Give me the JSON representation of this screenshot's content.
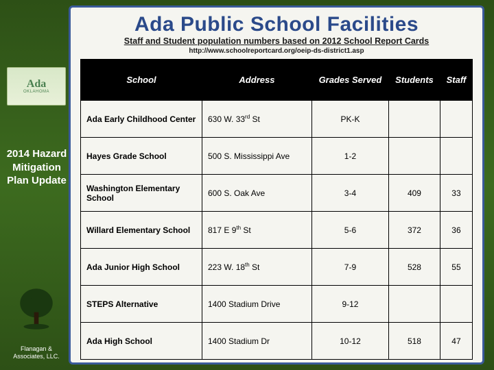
{
  "title": "Ada Public School Facilities",
  "subtitle": "Staff and Student population numbers based on 2012 School Report Cards",
  "url": "http://www.schoolreportcard.org/oeip-ds-district1.asp",
  "sidebar": {
    "logo_main": "Ada",
    "logo_sub": "OKLAHOMA",
    "text": "2014 Hazard Mitigation Plan Update"
  },
  "footer": {
    "line1": "Flanagan &",
    "line2": "Associates, LLC."
  },
  "table": {
    "columns": [
      "School",
      "Address",
      "Grades Served",
      "Students",
      "Staff"
    ],
    "rows": [
      {
        "school": "Ada Early Childhood Center",
        "address_html": "630 W. 33<sup>rd</sup> St",
        "grades": "PK-K",
        "students": "",
        "staff": ""
      },
      {
        "school": "Hayes Grade School",
        "address_html": "500 S. Mississippi Ave",
        "grades": "1-2",
        "students": "",
        "staff": ""
      },
      {
        "school": "Washington Elementary School",
        "address_html": "600 S. Oak Ave",
        "grades": "3-4",
        "students": "409",
        "staff": "33"
      },
      {
        "school": "Willard Elementary School",
        "address_html": "817 E 9<sup>th</sup> St",
        "grades": "5-6",
        "students": "372",
        "staff": "36"
      },
      {
        "school": "Ada Junior High School",
        "address_html": "223 W. 18<sup>th</sup> St",
        "grades": "7-9",
        "students": "528",
        "staff": "55"
      },
      {
        "school": "STEPS Alternative",
        "address_html": "1400 Stadium Drive",
        "grades": "9-12",
        "students": "",
        "staff": ""
      },
      {
        "school": "Ada High School",
        "address_html": "1400 Stadium Dr",
        "grades": "10-12",
        "students": "518",
        "staff": "47"
      }
    ]
  },
  "colors": {
    "panel_bg": "#f5f5f0",
    "panel_border": "#3a5a9a",
    "title_color": "#2b4a8a",
    "header_bg": "#000000",
    "header_text": "#ffffff",
    "bg_gradient_top": "#2d5016",
    "bg_gradient_mid": "#3d6b1f"
  }
}
